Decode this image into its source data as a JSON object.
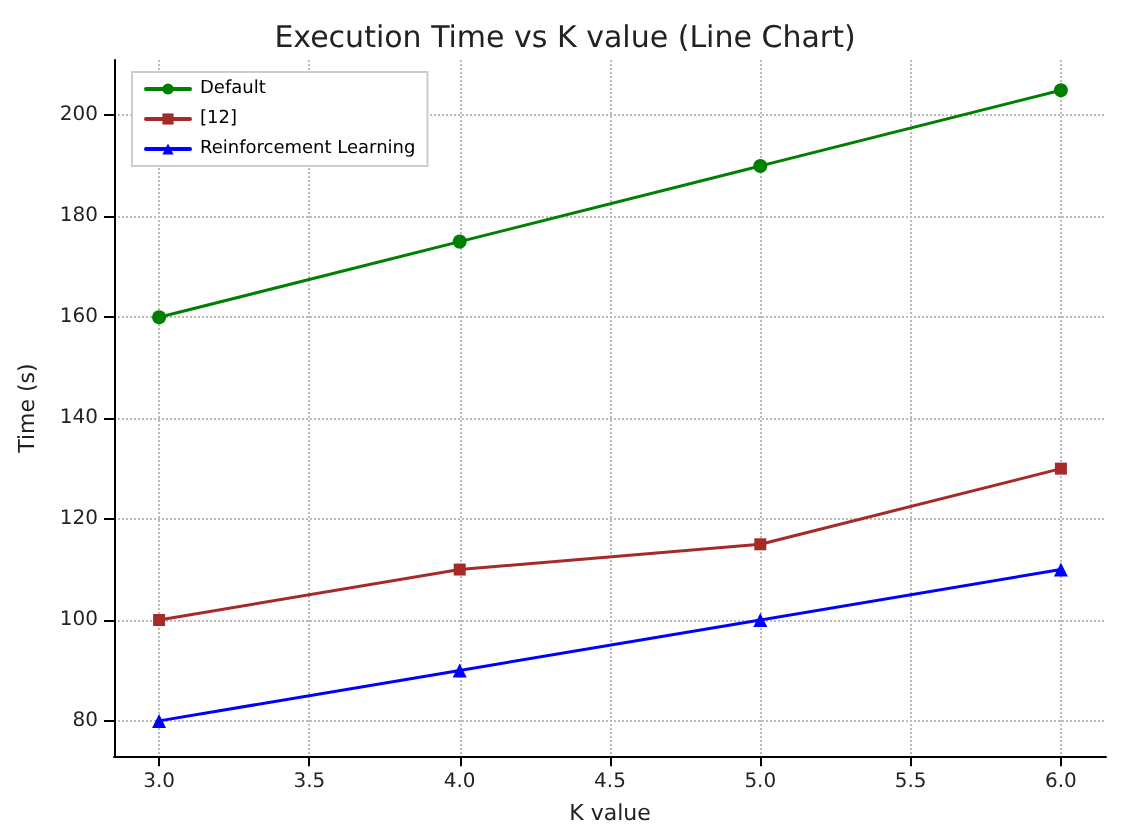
{
  "chart_data": {
    "type": "line",
    "title": "Execution Time vs K value (Line Chart)",
    "xlabel": "K value",
    "ylabel": "Time (s)",
    "x": [
      3,
      4,
      5,
      6
    ],
    "series": [
      {
        "name": "Default",
        "color": "#008000",
        "marker": "circle",
        "values": [
          160,
          175,
          190,
          205
        ]
      },
      {
        "name": "[12]",
        "color": "#a52a2a",
        "marker": "square",
        "values": [
          100,
          110,
          115,
          130
        ]
      },
      {
        "name": "Reinforcement Learning",
        "color": "#0000ff",
        "marker": "triangle",
        "values": [
          80,
          90,
          100,
          110
        ]
      }
    ],
    "xlim": [
      2.85,
      6.15
    ],
    "xticks": [
      {
        "value": 3,
        "label": "3.0"
      },
      {
        "value": 3.5,
        "label": "3.5"
      },
      {
        "value": 4,
        "label": "4.0"
      },
      {
        "value": 4.5,
        "label": "4.5"
      },
      {
        "value": 5,
        "label": "5.0"
      },
      {
        "value": 5.5,
        "label": "5.5"
      },
      {
        "value": 6,
        "label": "6.0"
      }
    ],
    "ylim": [
      73,
      211
    ],
    "yticks": [
      80,
      100,
      120,
      140,
      160,
      180,
      200
    ],
    "grid": true,
    "legend": "top left",
    "line_style": "solid"
  }
}
